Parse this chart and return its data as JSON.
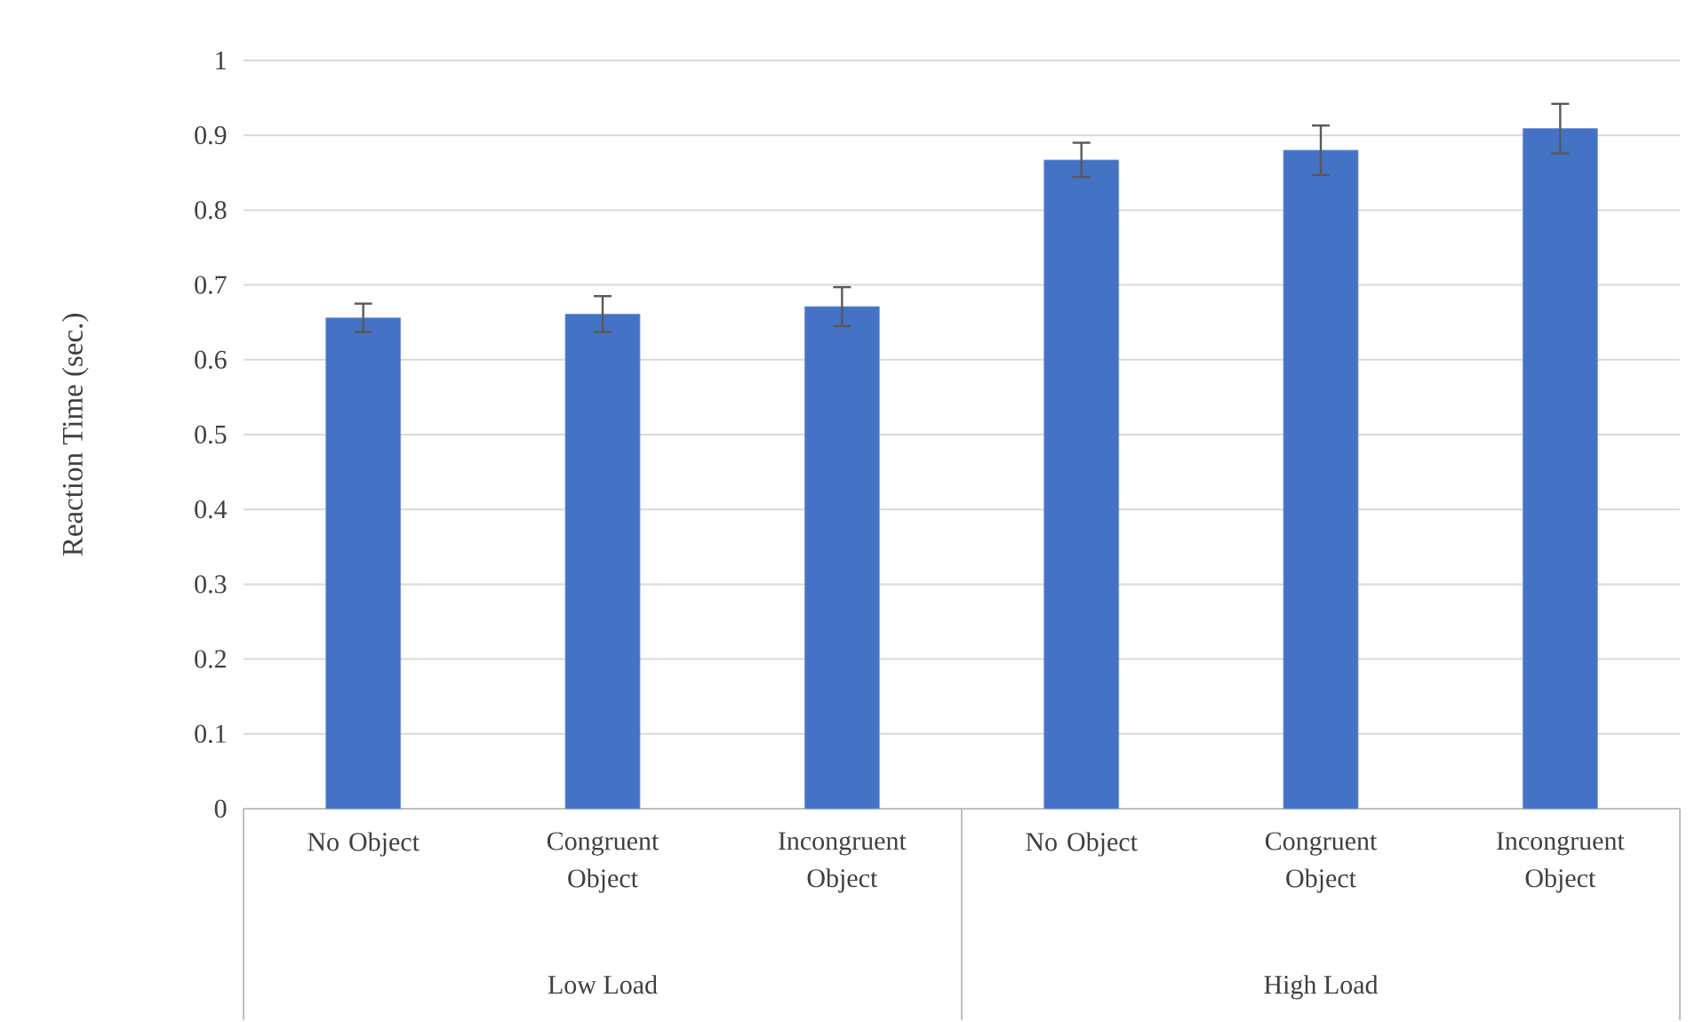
{
  "chart_data": {
    "type": "bar",
    "ylabel": "Reaction Time (sec.)",
    "categories": [
      "No Object",
      "Congruent Object",
      "Incongruent Object",
      "No Object",
      "Congruent Object",
      "Incongruent Object"
    ],
    "values": [
      0.656,
      0.661,
      0.671,
      0.867,
      0.88,
      0.909
    ],
    "errors": [
      0.019,
      0.024,
      0.026,
      0.023,
      0.033,
      0.033
    ],
    "color": "#4472c4",
    "annotations": [
      "Low Load",
      "High Load"
    ],
    "ylim": [
      0,
      1
    ],
    "yticks": [
      0,
      0.1,
      0.2,
      0.3,
      0.4,
      0.5,
      0.6,
      0.7,
      0.8,
      0.9,
      1
    ],
    "grid": "y"
  }
}
